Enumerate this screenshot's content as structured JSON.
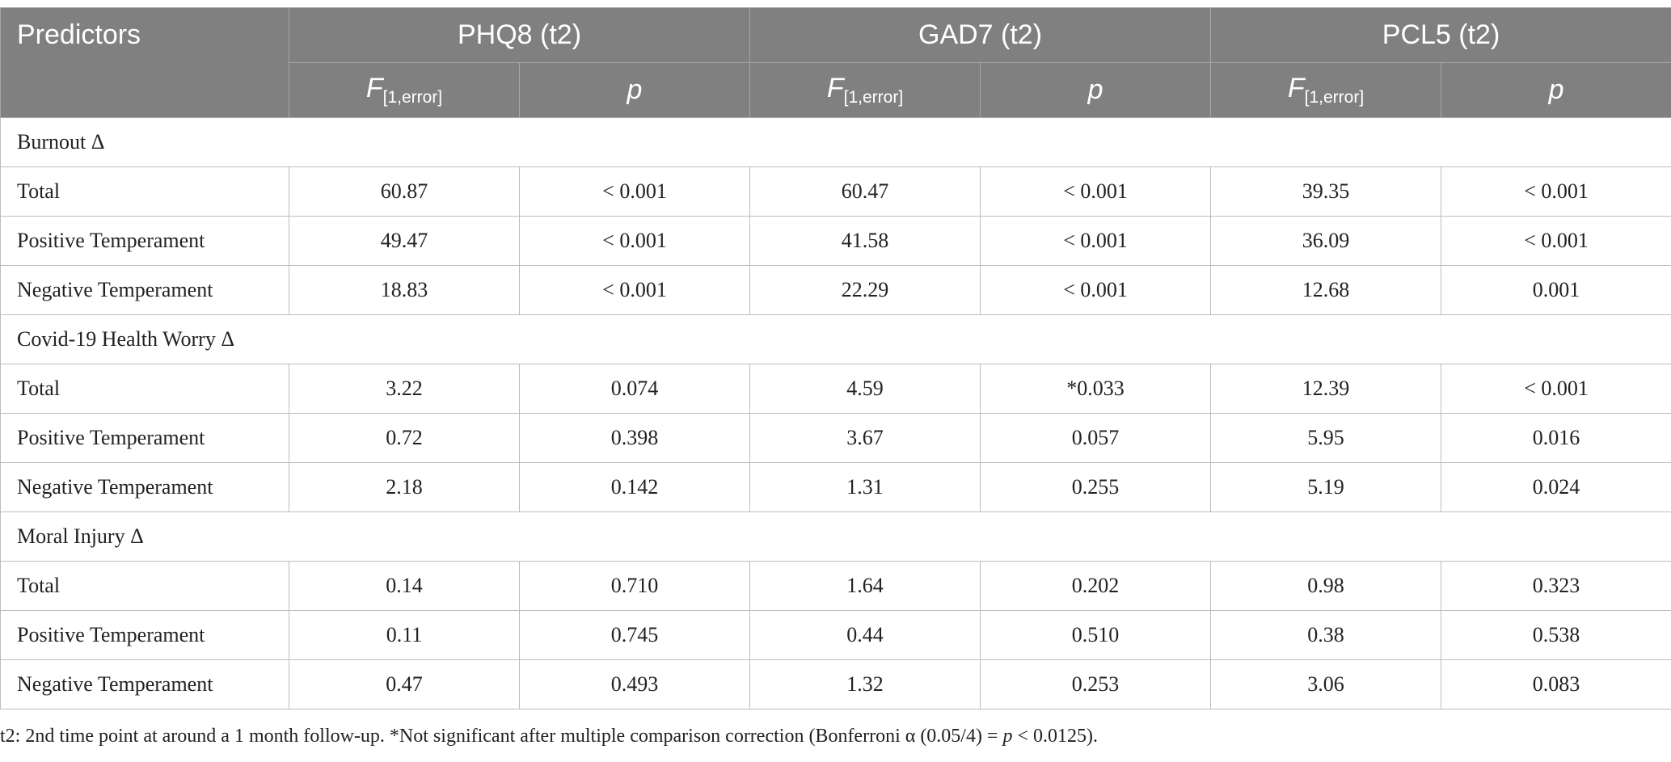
{
  "table": {
    "header": {
      "predictors_label": "Predictors",
      "groups": [
        "PHQ8 (t2)",
        "GAD7 (t2)",
        "PCL5 (t2)"
      ],
      "f_label": "F",
      "f_subscript": "[1,error]",
      "p_label": "p"
    },
    "sections": [
      {
        "title": "Burnout Δ",
        "rows": [
          {
            "label": "Total",
            "values": [
              "60.87",
              "< 0.001",
              "60.47",
              "< 0.001",
              "39.35",
              "< 0.001"
            ]
          },
          {
            "label": "Positive Temperament",
            "values": [
              "49.47",
              "< 0.001",
              "41.58",
              "< 0.001",
              "36.09",
              "< 0.001"
            ]
          },
          {
            "label": "Negative Temperament",
            "values": [
              "18.83",
              "< 0.001",
              "22.29",
              "< 0.001",
              "12.68",
              "0.001"
            ]
          }
        ]
      },
      {
        "title": "Covid-19 Health Worry Δ",
        "rows": [
          {
            "label": "Total",
            "values": [
              "3.22",
              "0.074",
              "4.59",
              "*0.033",
              "12.39",
              "< 0.001"
            ]
          },
          {
            "label": "Positive Temperament",
            "values": [
              "0.72",
              "0.398",
              "3.67",
              "0.057",
              "5.95",
              "0.016"
            ]
          },
          {
            "label": "Negative Temperament",
            "values": [
              "2.18",
              "0.142",
              "1.31",
              "0.255",
              "5.19",
              "0.024"
            ]
          }
        ]
      },
      {
        "title": "Moral Injury Δ",
        "rows": [
          {
            "label": "Total",
            "values": [
              "0.14",
              "0.710",
              "1.64",
              "0.202",
              "0.98",
              "0.323"
            ]
          },
          {
            "label": "Positive Temperament",
            "values": [
              "0.11",
              "0.745",
              "0.44",
              "0.510",
              "0.38",
              "0.538"
            ]
          },
          {
            "label": "Negative Temperament",
            "values": [
              "0.47",
              "0.493",
              "1.32",
              "0.253",
              "3.06",
              "0.083"
            ]
          }
        ]
      }
    ]
  },
  "footnote": {
    "text_before": "t2: 2nd time point at around a 1 month follow-up. *Not significant after multiple comparison correction (Bonferroni α (0.05/4) = ",
    "italic_p": "p",
    "text_after": " < 0.0125)."
  }
}
